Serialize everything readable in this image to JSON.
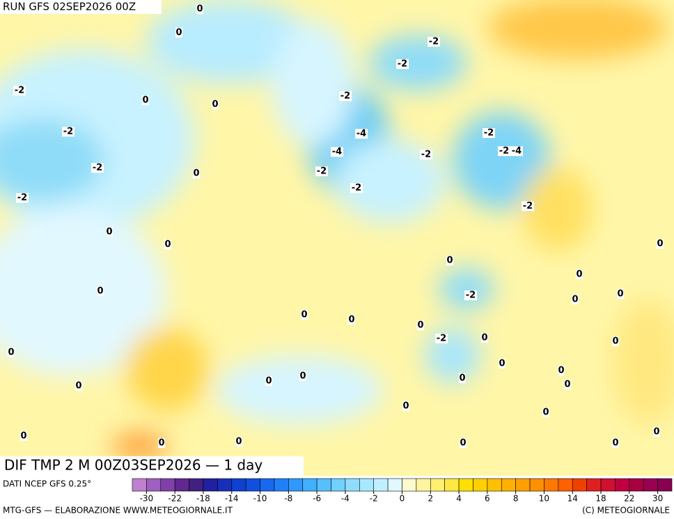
{
  "header": {
    "run": "RUN GFS 02SEP2026 00Z"
  },
  "map": {
    "title": "DIF TMP 2 M 00Z03SEP2026 — 1 day",
    "contour_labels": [
      "0",
      "0",
      "-2",
      "-2",
      "-2",
      "0",
      "-2",
      "0",
      "-2",
      "-4",
      "-2",
      "-2",
      "-4",
      "-4",
      "-2",
      "-2",
      "-2",
      "0",
      "-2",
      "-2",
      "-2",
      "0",
      "0",
      "0",
      "0",
      "0",
      "0",
      "-2",
      "0",
      "0",
      "0",
      "0",
      "0",
      "-2",
      "0",
      "0",
      "0",
      "0",
      "0",
      "0",
      "0",
      "0",
      "0",
      "0",
      "0",
      "0",
      "0",
      "0",
      "0",
      "0",
      "0",
      "0"
    ]
  },
  "colorbar": {
    "source": "DATI NCEP GFS 0.25°",
    "ticks": [
      -30,
      -22,
      -18,
      -14,
      -10,
      -8,
      -6,
      -4,
      -2,
      0,
      2,
      4,
      6,
      8,
      10,
      14,
      18,
      22,
      30
    ],
    "colors": [
      "#c080d0",
      "#a060c0",
      "#8040a8",
      "#602890",
      "#402080",
      "#2020a0",
      "#1830b8",
      "#1040d0",
      "#1050e0",
      "#1868f0",
      "#2080f8",
      "#3098ff",
      "#40b0ff",
      "#58c0ff",
      "#70d0ff",
      "#90dcff",
      "#a8e8ff",
      "#c0f0ff",
      "#e0f8ff",
      "#fffacd",
      "#fff5a0",
      "#fff070",
      "#ffe840",
      "#ffe000",
      "#ffd000",
      "#ffc000",
      "#ffb000",
      "#ffa000",
      "#ff9000",
      "#ff7800",
      "#ff6000",
      "#f04000",
      "#e02020",
      "#d01030",
      "#c00040",
      "#a80040",
      "#980050",
      "#880050"
    ]
  },
  "footer": {
    "left": "MTG-GFS — ELABORAZIONE WWW.METEOGIORNALE.IT",
    "right": "(C) METEOGIORNALE"
  }
}
